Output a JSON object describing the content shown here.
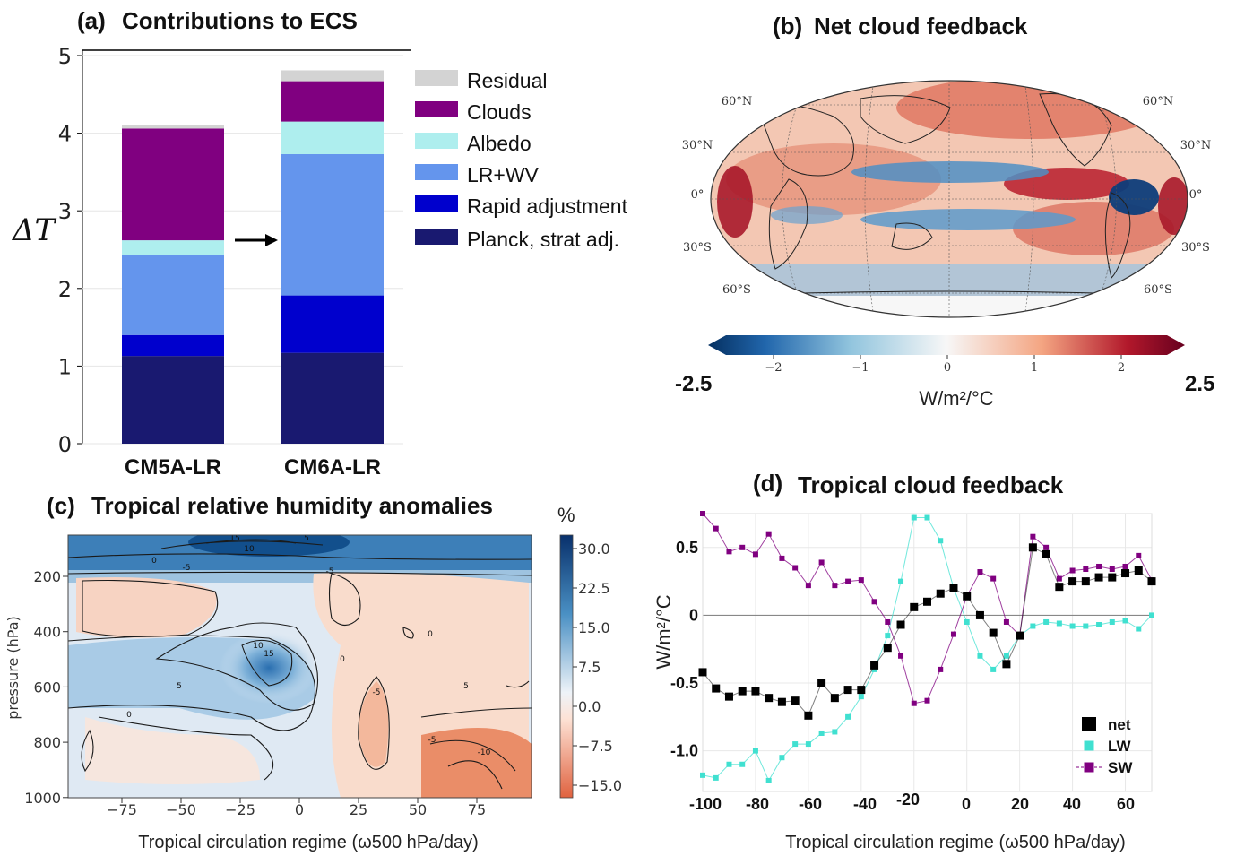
{
  "panels": {
    "a": {
      "tag": "(a)",
      "title": "Contributions to ECS"
    },
    "b": {
      "tag": "(b)",
      "title": "Net cloud feedback"
    },
    "c": {
      "tag": "(c)",
      "title": "Tropical relative humidity anomalies"
    },
    "d": {
      "tag": "(d)",
      "title": "Tropical cloud feedback"
    }
  },
  "chart_data": [
    {
      "id": "a",
      "type": "bar",
      "stacked": true,
      "title": "Contributions to ECS",
      "ylabel": "ΔT",
      "ylim": [
        0,
        5
      ],
      "yticks": [
        "0",
        "1",
        "2",
        "3",
        "4",
        "5"
      ],
      "categories": [
        "CM5A-LR",
        "CM6A-LR"
      ],
      "series": [
        {
          "name": "Planck, strat adj.",
          "color": "#191970",
          "values": [
            1.13,
            1.17
          ]
        },
        {
          "name": "Rapid adjustment",
          "color": "#0000cd",
          "values": [
            0.27,
            0.74
          ]
        },
        {
          "name": "LR+WV",
          "color": "#6495ed",
          "values": [
            1.03,
            1.82
          ]
        },
        {
          "name": "Albedo",
          "color": "#aeeeee",
          "values": [
            0.19,
            0.42
          ]
        },
        {
          "name": "Clouds",
          "color": "#800080",
          "values": [
            1.44,
            0.52
          ]
        },
        {
          "name": "Residual",
          "color": "#d3d3d3",
          "values": [
            0.05,
            0.14
          ]
        }
      ],
      "legend": "right, top"
    },
    {
      "id": "b",
      "type": "heatmap",
      "title": "Net cloud feedback",
      "projection": "Robinson (global map)",
      "colorbar_label": "W/m²/°C",
      "colorbar_ticks": [
        "−2",
        "−1",
        "0",
        "1",
        "2"
      ],
      "range_labels": [
        "-2.5",
        "2.5"
      ],
      "lat_labels_left": [
        "60°N",
        "30°N",
        "0°",
        "30°S",
        "60°S"
      ],
      "lat_labels_right": [
        "60°N",
        "30°N",
        "0°",
        "30°S",
        "60°S"
      ],
      "colormap": "RdBu_r"
    },
    {
      "id": "c",
      "type": "heatmap",
      "title": "Tropical relative humidity anomalies",
      "xlabel": "Tropical circulation regime (ω500 hPa/day)",
      "ylabel": "pressure (hPa)",
      "xticks": [
        "−75",
        "−50",
        "−25",
        "0",
        "25",
        "50",
        "75"
      ],
      "yticks": [
        "200",
        "400",
        "600",
        "800",
        "1000"
      ],
      "colorbar_unit": "%",
      "colorbar_ticks": [
        "30.0",
        "22.5",
        "15.0",
        "7.5",
        "0.0",
        "−7.5",
        "−15.0"
      ],
      "contour_labels": [
        "15",
        "10",
        "5",
        "0",
        "-5",
        "10",
        "15",
        "5",
        "0",
        "-5",
        "-5",
        "0",
        "-5",
        "-10",
        "5",
        "0"
      ]
    },
    {
      "id": "d",
      "type": "line",
      "title": "Tropical cloud feedback",
      "xlabel": "Tropical circulation regime (ω500 hPa/day)",
      "ylabel": "W/m²/°C",
      "xlim": [
        -100,
        70
      ],
      "ylim": [
        -1.3,
        0.75
      ],
      "xticks": [
        "-100",
        "-80",
        "-60",
        "-40",
        "-20",
        "0",
        "20",
        "40",
        "60"
      ],
      "yticks": [
        "0.5",
        "0",
        "-0.5",
        "-1.0"
      ],
      "x": [
        -100,
        -95,
        -90,
        -85,
        -80,
        -75,
        -70,
        -65,
        -60,
        -55,
        -50,
        -45,
        -40,
        -35,
        -30,
        -25,
        -20,
        -15,
        -10,
        -5,
        0,
        5,
        10,
        15,
        20,
        25,
        30,
        35,
        40,
        45,
        50,
        55,
        60,
        65,
        70
      ],
      "series": [
        {
          "name": "net",
          "color": "#000000",
          "values": [
            -0.42,
            -0.54,
            -0.6,
            -0.56,
            -0.56,
            -0.61,
            -0.64,
            -0.63,
            -0.74,
            -0.5,
            -0.61,
            -0.55,
            -0.55,
            -0.37,
            -0.24,
            -0.07,
            0.06,
            0.1,
            0.16,
            0.2,
            0.14,
            0.0,
            -0.13,
            -0.36,
            -0.15,
            0.5,
            0.45,
            0.21,
            0.25,
            0.25,
            0.28,
            0.28,
            0.31,
            0.33,
            0.25
          ]
        },
        {
          "name": "LW",
          "color": "#40e0d0",
          "values": [
            -1.18,
            -1.2,
            -1.1,
            -1.1,
            -1.0,
            -1.22,
            -1.05,
            -0.95,
            -0.95,
            -0.87,
            -0.86,
            -0.75,
            -0.6,
            -0.4,
            -0.15,
            0.25,
            0.72,
            0.72,
            0.55,
            0.2,
            -0.05,
            -0.3,
            -0.4,
            -0.3,
            -0.15,
            -0.08,
            -0.05,
            -0.06,
            -0.08,
            -0.08,
            -0.07,
            -0.05,
            -0.04,
            -0.1,
            0.0
          ]
        },
        {
          "name": "SW",
          "color": "#800080",
          "values": [
            0.75,
            0.64,
            0.47,
            0.5,
            0.45,
            0.6,
            0.42,
            0.35,
            0.22,
            0.39,
            0.22,
            0.25,
            0.26,
            0.1,
            -0.05,
            -0.3,
            -0.65,
            -0.63,
            -0.4,
            -0.14,
            0.14,
            0.32,
            0.27,
            -0.05,
            -0.15,
            0.58,
            0.5,
            0.27,
            0.33,
            0.34,
            0.36,
            0.34,
            0.36,
            0.44,
            0.26
          ]
        }
      ],
      "legend": "lower right"
    }
  ]
}
